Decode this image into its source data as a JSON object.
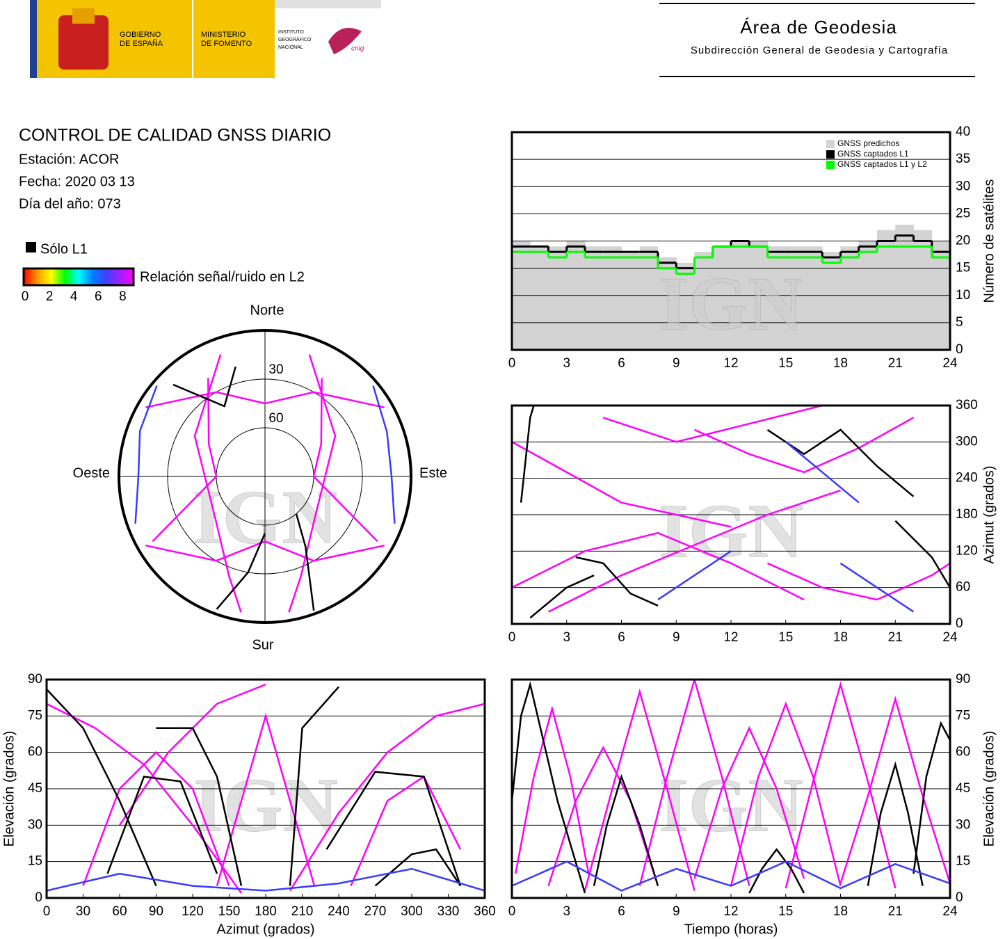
{
  "header": {
    "logo_gobierno": [
      "GOBIERNO",
      "DE ESPAÑA"
    ],
    "logo_ministerio": [
      "MINISTERIO",
      "DE FOMENTO"
    ],
    "logo_ign": [
      "INSTITUTO",
      "GEOGRÁFICO",
      "NACIONAL"
    ],
    "logo_cnig": "cnig",
    "area": "Área de Geodesia",
    "subdireccion": "Subdirección General de Geodesia y Cartografía"
  },
  "info": {
    "title": "CONTROL DE CALIDAD GNSS DIARIO",
    "lines": [
      "Estación: ACOR",
      "Fecha: 2020 03 13",
      "Día del año: 073"
    ]
  },
  "legend": {
    "solo_l1": "Sólo L1",
    "solo_l1_color": "#000000",
    "colorbar_label": "Relación señal/ruido en L2",
    "colorbar_ticks": [
      0,
      2,
      4,
      6,
      8
    ],
    "colorbar_colors": [
      "#ff0000",
      "#ff9900",
      "#ffff00",
      "#00ff00",
      "#00ffff",
      "#0080ff",
      "#4040ff",
      "#a020ff",
      "#ff00ff"
    ]
  },
  "chart_data": [
    {
      "type": "polar",
      "directions": {
        "north": "Norte",
        "south": "Sur",
        "east": "Este",
        "west": "Oeste"
      },
      "rings": [
        30,
        60
      ],
      "watermark": "IGN",
      "tracks": [
        {
          "color": "#ff00ff",
          "x": [
            300,
            330,
            0,
            30,
            60
          ],
          "values": [
            5,
            30,
            45,
            30,
            5
          ]
        },
        {
          "color": "#ff00ff",
          "x": [
            120,
            150,
            180,
            210,
            240
          ],
          "values": [
            5,
            30,
            50,
            30,
            5
          ]
        },
        {
          "color": "#ff00ff",
          "x": [
            330,
            300,
            270,
            240
          ],
          "values": [
            20,
            50,
            60,
            10
          ]
        },
        {
          "color": "#ff00ff",
          "x": [
            30,
            60,
            90,
            120
          ],
          "values": [
            20,
            50,
            60,
            10
          ]
        },
        {
          "color": "#ff00ff",
          "x": [
            190,
            200,
            230,
            300,
            340
          ],
          "values": [
            5,
            25,
            50,
            40,
            10
          ]
        },
        {
          "color": "#ff00ff",
          "x": [
            170,
            160,
            130,
            60,
            20
          ],
          "values": [
            5,
            25,
            50,
            40,
            10
          ]
        },
        {
          "color": "#000000",
          "x": [
            200,
            190,
            180
          ],
          "values": [
            3,
            30,
            55
          ]
        },
        {
          "color": "#000000",
          "x": [
            160,
            150,
            140
          ],
          "values": [
            2,
            40,
            60
          ]
        },
        {
          "color": "#000000",
          "x": [
            315,
            330,
            345
          ],
          "values": [
            10,
            40,
            20
          ]
        },
        {
          "color": "#3a3aff",
          "x": [
            250,
            270,
            290,
            310
          ],
          "values": [
            5,
            12,
            8,
            3
          ]
        },
        {
          "color": "#3a3aff",
          "x": [
            50,
            70,
            90,
            110
          ],
          "values": [
            3,
            10,
            12,
            5
          ]
        }
      ]
    },
    {
      "type": "step",
      "ylabel": "Número de satélites",
      "watermark": "IGN",
      "x": [
        0,
        1,
        2,
        3,
        4,
        5,
        6,
        7,
        8,
        9,
        10,
        11,
        12,
        13,
        14,
        15,
        16,
        17,
        18,
        19,
        20,
        21,
        22,
        23
      ],
      "xlim": [
        0,
        24
      ],
      "xticks": [
        0,
        3,
        6,
        9,
        12,
        15,
        18,
        21,
        24
      ],
      "ylim": [
        0,
        40
      ],
      "yticks": [
        0,
        5,
        10,
        15,
        20,
        25,
        30,
        35,
        40
      ],
      "grid": true,
      "legend": "upper right",
      "series": [
        {
          "name": "GNSS predichos",
          "color": "#d3d3d3",
          "values": [
            20,
            19,
            19,
            20,
            19,
            19,
            18,
            19,
            17,
            16,
            18,
            19,
            20,
            20,
            19,
            19,
            19,
            18,
            19,
            20,
            22,
            23,
            22,
            20
          ]
        },
        {
          "name": "GNSS captados L1",
          "color": "#000000",
          "values": [
            19,
            19,
            18,
            19,
            18,
            18,
            18,
            18,
            16,
            15,
            17,
            19,
            20,
            19,
            18,
            18,
            18,
            17,
            18,
            19,
            20,
            21,
            20,
            18
          ]
        },
        {
          "name": "GNSS captados L1 y L2",
          "color": "#00ff00",
          "values": [
            18,
            18,
            17,
            18,
            17,
            17,
            17,
            17,
            15,
            14,
            17,
            19,
            19,
            19,
            17,
            17,
            17,
            16,
            17,
            18,
            19,
            19,
            19,
            17
          ]
        }
      ]
    },
    {
      "type": "tracks",
      "ylabel": "Azimut (grados)",
      "watermark": "IGN",
      "xlim": [
        0,
        24
      ],
      "xticks": [
        0,
        3,
        6,
        9,
        12,
        15,
        18,
        21,
        24
      ],
      "ylim": [
        0,
        360
      ],
      "yticks": [
        0,
        60,
        120,
        180,
        240,
        300,
        360
      ],
      "grid": true,
      "tracks": [
        {
          "color": "#ff00ff",
          "x": [
            0,
            3,
            6,
            9,
            12
          ],
          "values": [
            300,
            250,
            200,
            180,
            160
          ]
        },
        {
          "color": "#ff00ff",
          "x": [
            0,
            4,
            8,
            12,
            16
          ],
          "values": [
            60,
            120,
            150,
            100,
            40
          ]
        },
        {
          "color": "#ff00ff",
          "x": [
            10,
            13,
            16,
            19,
            22
          ],
          "values": [
            320,
            280,
            250,
            290,
            340
          ]
        },
        {
          "color": "#ff00ff",
          "x": [
            2,
            6,
            10,
            14,
            18
          ],
          "values": [
            20,
            80,
            130,
            180,
            220
          ]
        },
        {
          "color": "#ff00ff",
          "x": [
            14,
            17,
            20,
            23,
            24
          ],
          "values": [
            100,
            60,
            40,
            80,
            100
          ]
        },
        {
          "color": "#ff00ff",
          "x": [
            5,
            9,
            13,
            17
          ],
          "values": [
            340,
            300,
            330,
            360
          ]
        },
        {
          "color": "#000000",
          "x": [
            3.5,
            5,
            6.5,
            8
          ],
          "values": [
            110,
            100,
            50,
            30
          ]
        },
        {
          "color": "#000000",
          "x": [
            14,
            16,
            18,
            20,
            22
          ],
          "values": [
            320,
            280,
            320,
            260,
            210
          ]
        },
        {
          "color": "#000000",
          "x": [
            0.5,
            1,
            1.2
          ],
          "values": [
            200,
            340,
            360
          ]
        },
        {
          "color": "#000000",
          "x": [
            1,
            3,
            4.5
          ],
          "values": [
            10,
            60,
            80
          ]
        },
        {
          "color": "#000000",
          "x": [
            21,
            23,
            24
          ],
          "values": [
            170,
            110,
            60
          ]
        },
        {
          "color": "#3a3aff",
          "x": [
            8,
            10,
            12
          ],
          "values": [
            40,
            80,
            120
          ]
        },
        {
          "color": "#3a3aff",
          "x": [
            15,
            17,
            19
          ],
          "values": [
            300,
            250,
            200
          ]
        },
        {
          "color": "#3a3aff",
          "x": [
            18,
            20,
            22
          ],
          "values": [
            100,
            60,
            20
          ]
        }
      ]
    },
    {
      "type": "tracks",
      "xlabel": "Azimut (grados)",
      "ylabel": "Elevación (grados)",
      "watermark": "IGN",
      "xlim": [
        0,
        360
      ],
      "xticks": [
        0,
        30,
        60,
        90,
        120,
        150,
        180,
        210,
        240,
        270,
        300,
        330,
        360
      ],
      "ylim": [
        0,
        90
      ],
      "yticks": [
        0,
        15,
        30,
        45,
        60,
        75,
        90
      ],
      "grid": true,
      "tracks": [
        {
          "color": "#ff00ff",
          "x": [
            30,
            60,
            90,
            120,
            150
          ],
          "values": [
            5,
            45,
            60,
            45,
            5
          ]
        },
        {
          "color": "#ff00ff",
          "x": [
            0,
            40,
            80,
            120,
            160
          ],
          "values": [
            80,
            70,
            55,
            30,
            2
          ]
        },
        {
          "color": "#ff00ff",
          "x": [
            200,
            240,
            280,
            320,
            360
          ],
          "values": [
            3,
            35,
            60,
            75,
            80
          ]
        },
        {
          "color": "#ff00ff",
          "x": [
            140,
            160,
            180,
            200,
            220
          ],
          "values": [
            5,
            40,
            75,
            40,
            5
          ]
        },
        {
          "color": "#ff00ff",
          "x": [
            60,
            100,
            140,
            180
          ],
          "values": [
            30,
            60,
            80,
            88
          ]
        },
        {
          "color": "#ff00ff",
          "x": [
            250,
            280,
            310,
            340
          ],
          "values": [
            5,
            40,
            50,
            20
          ]
        },
        {
          "color": "#000000",
          "x": [
            0,
            30,
            60,
            90
          ],
          "values": [
            86,
            70,
            40,
            5
          ]
        },
        {
          "color": "#000000",
          "x": [
            50,
            80,
            110,
            140
          ],
          "values": [
            10,
            50,
            48,
            10
          ]
        },
        {
          "color": "#000000",
          "x": [
            90,
            120,
            140,
            160
          ],
          "values": [
            70,
            70,
            50,
            5
          ]
        },
        {
          "color": "#000000",
          "x": [
            230,
            270,
            310,
            340
          ],
          "values": [
            20,
            52,
            50,
            5
          ]
        },
        {
          "color": "#000000",
          "x": [
            270,
            300,
            320,
            340
          ],
          "values": [
            5,
            18,
            20,
            5
          ]
        },
        {
          "color": "#000000",
          "x": [
            200,
            210,
            240
          ],
          "values": [
            5,
            70,
            87
          ]
        },
        {
          "color": "#3a3aff",
          "x": [
            0,
            60,
            120,
            180,
            240,
            300,
            360
          ],
          "values": [
            3,
            10,
            5,
            3,
            6,
            12,
            3
          ]
        }
      ]
    },
    {
      "type": "tracks",
      "xlabel": "Tiempo (horas)",
      "ylabel": "Elevación (grados)",
      "watermark": "IGN",
      "xlim": [
        0,
        24
      ],
      "xticks": [
        0,
        3,
        6,
        9,
        12,
        15,
        18,
        21,
        24
      ],
      "ylim": [
        0,
        90
      ],
      "yticks": [
        0,
        15,
        30,
        45,
        60,
        75,
        90
      ],
      "grid": true,
      "tracks": [
        {
          "color": "#ff00ff",
          "x": [
            0.2,
            1.2,
            2.2,
            3.2,
            4.2
          ],
          "values": [
            10,
            50,
            78,
            50,
            10
          ]
        },
        {
          "color": "#ff00ff",
          "x": [
            2,
            3.5,
            5,
            6.5,
            8
          ],
          "values": [
            5,
            40,
            62,
            40,
            5
          ]
        },
        {
          "color": "#ff00ff",
          "x": [
            4,
            5.5,
            7,
            8.5,
            10
          ],
          "values": [
            3,
            45,
            85,
            45,
            3
          ]
        },
        {
          "color": "#ff00ff",
          "x": [
            7,
            8.5,
            10,
            11.5,
            13
          ],
          "values": [
            5,
            50,
            90,
            50,
            5
          ]
        },
        {
          "color": "#ff00ff",
          "x": [
            10,
            11.5,
            13,
            14.5,
            16
          ],
          "values": [
            8,
            45,
            70,
            45,
            8
          ]
        },
        {
          "color": "#ff00ff",
          "x": [
            12,
            13.5,
            15,
            16.5,
            18
          ],
          "values": [
            5,
            50,
            80,
            50,
            5
          ]
        },
        {
          "color": "#ff00ff",
          "x": [
            15,
            16.5,
            18,
            19.5,
            21
          ],
          "values": [
            4,
            48,
            88,
            48,
            4
          ]
        },
        {
          "color": "#ff00ff",
          "x": [
            18,
            19.5,
            21,
            22.5,
            24
          ],
          "values": [
            6,
            42,
            82,
            42,
            6
          ]
        },
        {
          "color": "#000000",
          "x": [
            0,
            0.5,
            1,
            2.5,
            4
          ],
          "values": [
            40,
            75,
            88,
            40,
            2
          ]
        },
        {
          "color": "#000000",
          "x": [
            4.5,
            5.2,
            6,
            7,
            8
          ],
          "values": [
            5,
            30,
            50,
            30,
            5
          ]
        },
        {
          "color": "#000000",
          "x": [
            13,
            13.7,
            14.5,
            15.3,
            16
          ],
          "values": [
            2,
            12,
            20,
            12,
            2
          ]
        },
        {
          "color": "#000000",
          "x": [
            19.5,
            20.2,
            21,
            21.7,
            22.5
          ],
          "values": [
            5,
            35,
            55,
            35,
            5
          ]
        },
        {
          "color": "#000000",
          "x": [
            22,
            22.7,
            23.5,
            24
          ],
          "values": [
            10,
            50,
            72,
            65
          ]
        },
        {
          "color": "#3a3aff",
          "x": [
            0,
            3,
            6,
            9,
            12,
            15,
            18,
            21,
            24
          ],
          "values": [
            5,
            15,
            3,
            12,
            5,
            15,
            4,
            14,
            6
          ]
        }
      ]
    }
  ]
}
